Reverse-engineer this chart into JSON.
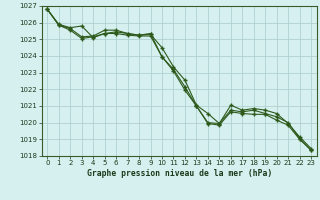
{
  "x": [
    0,
    1,
    2,
    3,
    4,
    5,
    6,
    7,
    8,
    9,
    10,
    11,
    12,
    13,
    14,
    15,
    16,
    17,
    18,
    19,
    20,
    21,
    22,
    23
  ],
  "line1": [
    1026.8,
    1025.9,
    1025.7,
    1025.8,
    1025.1,
    1025.35,
    1025.45,
    1025.35,
    1025.25,
    1025.3,
    1024.5,
    1023.35,
    1022.55,
    1021.05,
    1020.55,
    1019.95,
    1021.05,
    1020.75,
    1020.85,
    1020.75,
    1020.55,
    1019.95,
    1019.15,
    1018.45
  ],
  "line2": [
    1026.8,
    1025.85,
    1025.65,
    1025.15,
    1025.2,
    1025.55,
    1025.55,
    1025.35,
    1025.25,
    1025.35,
    1023.95,
    1023.2,
    1022.15,
    1021.0,
    1020.0,
    1019.95,
    1020.75,
    1020.65,
    1020.75,
    1020.55,
    1020.35,
    1020.0,
    1019.05,
    1018.35
  ],
  "line3": [
    1026.8,
    1025.85,
    1025.55,
    1025.05,
    1025.15,
    1025.35,
    1025.35,
    1025.25,
    1025.2,
    1025.2,
    1023.95,
    1023.1,
    1021.95,
    1021.0,
    1019.95,
    1019.85,
    1020.65,
    1020.55,
    1020.5,
    1020.5,
    1020.15,
    1019.85,
    1019.0,
    1018.35
  ],
  "color": "#2d5a1b",
  "bg_color": "#d6f0f0",
  "grid_color": "#b0d0d0",
  "xlabel": "Graphe pression niveau de la mer (hPa)",
  "ylim_min": 1018,
  "ylim_max": 1027,
  "xlim_min": 0,
  "xlim_max": 23
}
